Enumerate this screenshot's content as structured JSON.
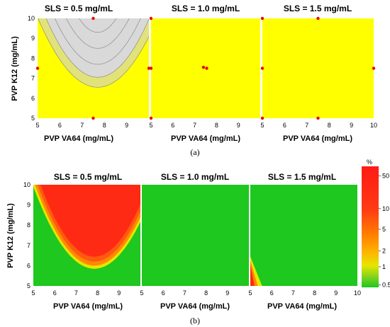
{
  "colors": {
    "yellow": "#ffff00",
    "grey": "#d9d9d9",
    "pale_yellow": "#e2e27a",
    "contour": "#8c8c8c",
    "red_point": "#e8000b",
    "green": "#1ec81e",
    "red": "#ff2a14",
    "orange": "#ff8a00",
    "yellow_mid": "#e6e600"
  },
  "chart_data": [
    {
      "id": "a",
      "caption": "(a)",
      "type": "contour",
      "xlabel": "PVP VA64 (mg/mL)",
      "ylabel": "PVP K12 (mg/mL)",
      "xlim": [
        5,
        10
      ],
      "ylim": [
        5,
        10
      ],
      "yticks": [
        5,
        6,
        7,
        8,
        9,
        10
      ],
      "panels": [
        {
          "title": "SLS = 0.5 mg/mL",
          "xticks": [
            5,
            6,
            7,
            8,
            9
          ],
          "region": "grey-parabola",
          "design_points": [
            [
              7.5,
              10
            ],
            [
              5,
              7.5
            ],
            [
              10,
              7.5
            ],
            [
              7.5,
              5
            ]
          ]
        },
        {
          "title": "SLS = 1.0 mg/mL",
          "xticks": [
            5,
            6,
            7,
            8,
            9
          ],
          "region": "none",
          "design_points": [
            [
              5,
              10
            ],
            [
              5,
              7.5
            ],
            [
              7.4,
              7.55
            ],
            [
              7.55,
              7.5
            ],
            [
              5,
              5
            ]
          ]
        },
        {
          "title": "SLS = 1.5 mg/mL",
          "xticks": [
            5,
            6,
            7,
            8,
            9,
            10
          ],
          "region": "none",
          "design_points": [
            [
              5,
              10
            ],
            [
              7.5,
              10
            ],
            [
              5,
              7.5
            ],
            [
              10,
              7.5
            ],
            [
              5,
              5
            ],
            [
              7.5,
              5
            ]
          ]
        }
      ]
    },
    {
      "id": "b",
      "caption": "(b)",
      "type": "heatmap",
      "xlabel": "PVP VA64 (mg/mL)",
      "ylabel": "PVP K12 (mg/mL)",
      "xlim": [
        5,
        10
      ],
      "ylim": [
        5,
        10
      ],
      "yticks": [
        5,
        6,
        7,
        8,
        9,
        10
      ],
      "panels": [
        {
          "title": "SLS = 0.5 mg/mL",
          "xticks": [
            5,
            6,
            7,
            8,
            9
          ],
          "region": "red-parabola"
        },
        {
          "title": "SLS = 1.0 mg/mL",
          "xticks": [
            5,
            6,
            7,
            8,
            9
          ],
          "region": "none"
        },
        {
          "title": "SLS = 1.5 mg/mL",
          "xticks": [
            5,
            6,
            7,
            8,
            9,
            10
          ],
          "region": "corner"
        }
      ],
      "colorbar": {
        "unit": "%",
        "ticks": [
          "50",
          "10",
          "5",
          "2",
          "1",
          "0.5"
        ],
        "tick_fractions": [
          0.08,
          0.35,
          0.52,
          0.7,
          0.83,
          0.98
        ]
      }
    }
  ]
}
